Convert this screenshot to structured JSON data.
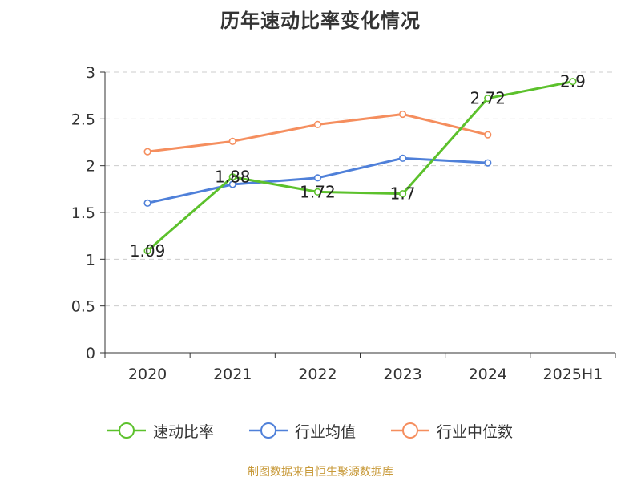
{
  "chart_data": {
    "type": "line",
    "title": "历年速动比率变化情况",
    "categories": [
      "2020",
      "2021",
      "2022",
      "2023",
      "2024",
      "2025H1"
    ],
    "ylim": [
      0,
      3
    ],
    "yticks": [
      "0",
      "0.5",
      "1",
      "1.5",
      "2",
      "2.5",
      "3"
    ],
    "grid": true,
    "legend_position": "bottom",
    "series": [
      {
        "name": "速动比率",
        "color": "#5cc12c",
        "values": [
          1.09,
          1.88,
          1.72,
          1.7,
          2.72,
          2.9
        ],
        "labels": [
          "1.09",
          "1.88",
          "1.72",
          "1.7",
          "2.72",
          "2.9"
        ]
      },
      {
        "name": "行业均值",
        "color": "#4f80d9",
        "values": [
          1.6,
          1.8,
          1.87,
          2.08,
          2.03,
          null
        ]
      },
      {
        "name": "行业中位数",
        "color": "#f58e5e",
        "values": [
          2.15,
          2.26,
          2.44,
          2.55,
          2.33,
          null
        ]
      }
    ]
  },
  "source_note": {
    "text": "制图数据来自恒生聚源数据库",
    "color": "#c89a3a"
  }
}
